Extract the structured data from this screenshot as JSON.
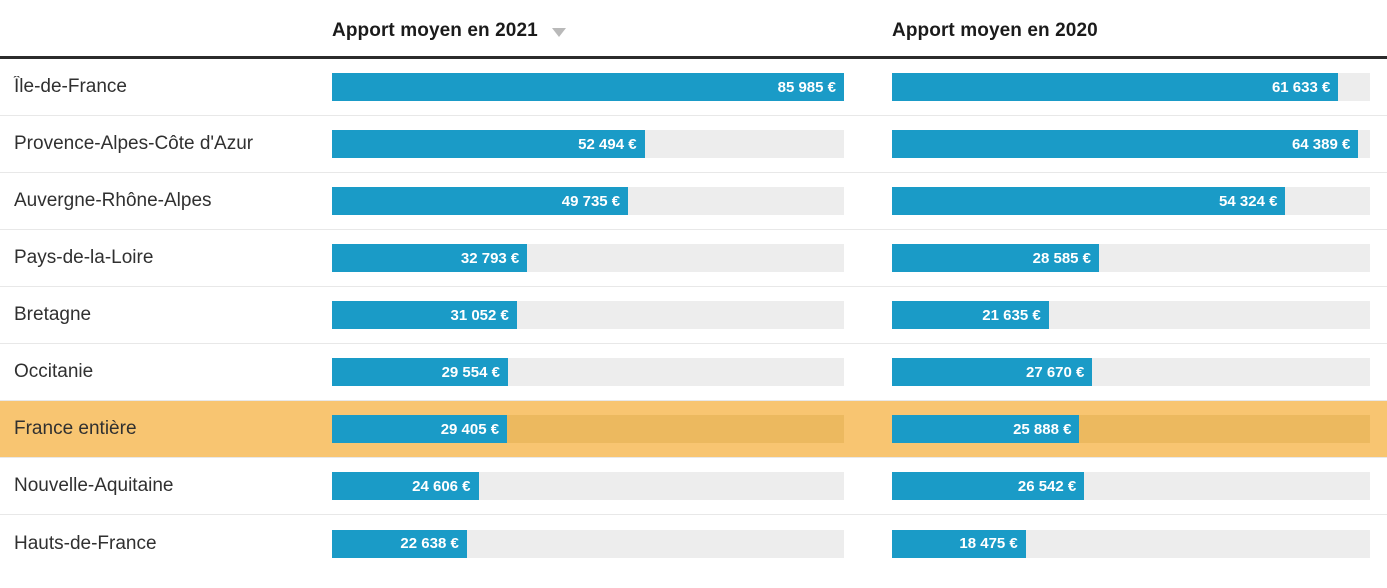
{
  "chart_data": {
    "type": "bar",
    "orientation": "horizontal",
    "unit": "€",
    "title": "",
    "grid": false,
    "legend_position": "column-headers",
    "sorted_by": "Apport moyen en 2021 (descending)",
    "highlighted_category": "France entière",
    "categories": [
      "Île-de-France",
      "Provence-Alpes-Côte d'Azur",
      "Auvergne-Rhône-Alpes",
      "Pays-de-la-Loire",
      "Bretagne",
      "Occitanie",
      "France entière",
      "Nouvelle-Aquitaine",
      "Hauts-de-France"
    ],
    "series": [
      {
        "name": "Apport moyen en 2021",
        "sort_indicator": "descending",
        "scale_max": 85985,
        "values": [
          85985,
          52494,
          49735,
          32793,
          31052,
          29554,
          29405,
          24606,
          22638
        ],
        "labels": [
          "85 985 €",
          "52 494 €",
          "49 735 €",
          "32 793 €",
          "31 052 €",
          "29 554 €",
          "29 405 €",
          "24 606 €",
          "22 638 €"
        ]
      },
      {
        "name": "Apport moyen en 2020",
        "sort_indicator": null,
        "scale_max": 66000,
        "values": [
          61633,
          64389,
          54324,
          28585,
          21635,
          27670,
          25888,
          26542,
          18475
        ],
        "labels": [
          "61 633 €",
          "64 389 €",
          "54 324 €",
          "28 585 €",
          "21 635 €",
          "27 670 €",
          "25 888 €",
          "26 542 €",
          "18 475 €"
        ]
      }
    ]
  },
  "colors": {
    "bar": "#1a9bc7",
    "track": "#ededed",
    "highlight_row": "#f8c571",
    "highlight_track": "#ecb95f",
    "header_text": "#1b1b1b",
    "label_text": "#303030",
    "sort_arrow": "#b9b9b9"
  }
}
